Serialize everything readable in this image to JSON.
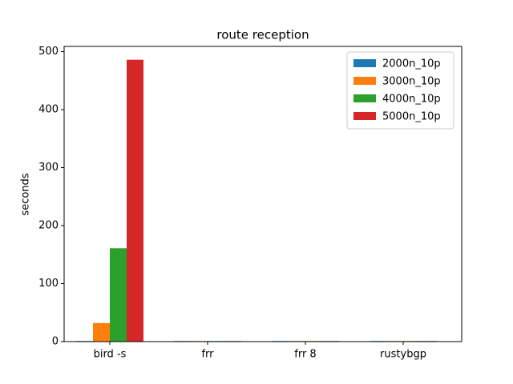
{
  "chart_data": {
    "type": "bar",
    "title": "route reception",
    "y_label": "seconds",
    "categories": [
      "bird -s",
      "frr",
      "frr 8",
      "rustybgp"
    ],
    "series": [
      {
        "name": "2000n_10p",
        "color": "#1f77b4",
        "values": [
          1,
          1,
          1,
          1
        ]
      },
      {
        "name": "3000n_10p",
        "color": "#ff7f0e",
        "values": [
          32,
          1,
          1,
          1
        ]
      },
      {
        "name": "4000n_10p",
        "color": "#2ca02c",
        "values": [
          161,
          1,
          1,
          1
        ]
      },
      {
        "name": "5000n_10p",
        "color": "#d62728",
        "values": [
          486,
          1,
          1,
          1
        ]
      }
    ],
    "ylim": [
      0,
      509
    ],
    "yticks": [
      0,
      100,
      200,
      300,
      400,
      500
    ],
    "legend": "upper right"
  }
}
